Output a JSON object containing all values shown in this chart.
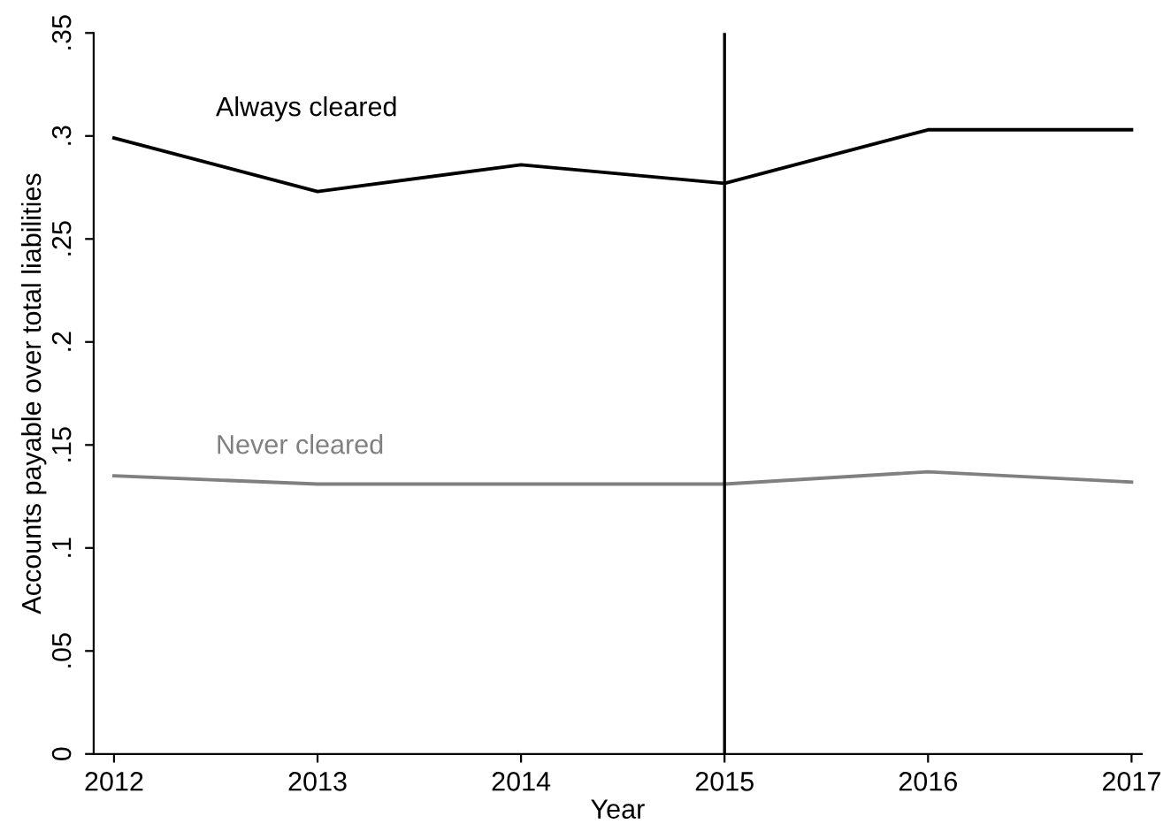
{
  "chart_data": {
    "type": "line",
    "xlabel": "Year",
    "ylabel": "Accounts payable over total liabilities",
    "x": [
      2012,
      2013,
      2014,
      2015,
      2016,
      2017
    ],
    "series": [
      {
        "name": "Always cleared",
        "color": "#000000",
        "values": [
          0.299,
          0.273,
          0.286,
          0.277,
          0.303,
          0.303
        ]
      },
      {
        "name": "Never cleared",
        "color": "#808080",
        "values": [
          0.135,
          0.131,
          0.131,
          0.131,
          0.137,
          0.132
        ]
      }
    ],
    "xlim": [
      2011.9,
      2017.05
    ],
    "ylim": [
      0,
      0.35
    ],
    "xticks": [
      2012,
      2013,
      2014,
      2015,
      2016,
      2017
    ],
    "yticks": [
      {
        "value": 0,
        "label": "0"
      },
      {
        "value": 0.05,
        "label": ".05"
      },
      {
        "value": 0.1,
        "label": ".1"
      },
      {
        "value": 0.15,
        "label": ".15"
      },
      {
        "value": 0.2,
        "label": ".2"
      },
      {
        "value": 0.25,
        "label": ".25"
      },
      {
        "value": 0.3,
        "label": ".3"
      },
      {
        "value": 0.35,
        "label": ".35"
      }
    ],
    "ref_lines": [
      {
        "axis": "x",
        "value": 2015,
        "color": "#000000"
      }
    ],
    "grid": false,
    "legend": false,
    "marker": "none",
    "line_style": "solid"
  }
}
